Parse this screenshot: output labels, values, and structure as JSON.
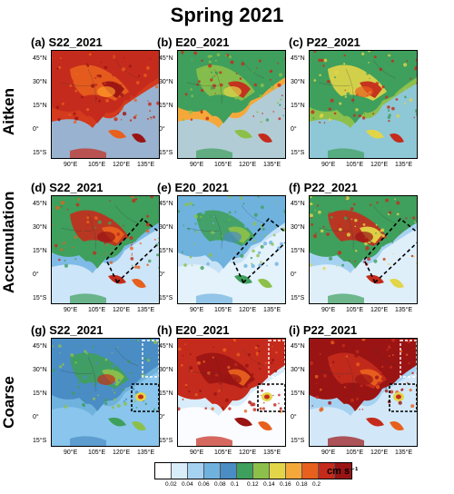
{
  "title": "Spring 2021",
  "rows": [
    {
      "label": "Aitken",
      "panels": [
        {
          "letter": "(a)",
          "name": "S22_2021",
          "theme": "hot"
        },
        {
          "letter": "(b)",
          "name": "E20_2021",
          "theme": "mixed"
        },
        {
          "letter": "(c)",
          "name": "P22_2021",
          "theme": "mixed2"
        }
      ]
    },
    {
      "label": "Accumulation",
      "panels": [
        {
          "letter": "(d)",
          "name": "S22_2021",
          "theme": "accum"
        },
        {
          "letter": "(e)",
          "name": "E20_2021",
          "theme": "cool"
        },
        {
          "letter": "(f)",
          "name": "P22_2021",
          "theme": "accum2"
        }
      ]
    },
    {
      "label": "Coarse",
      "panels": [
        {
          "letter": "(g)",
          "name": "S22_2021",
          "theme": "coarse1"
        },
        {
          "letter": "(h)",
          "name": "E20_2021",
          "theme": "coarse2"
        },
        {
          "letter": "(i)",
          "name": "P22_2021",
          "theme": "coarse3"
        }
      ]
    }
  ],
  "lat_ticks": [
    "45°N",
    "30°N",
    "15°N",
    "0°",
    "15°S"
  ],
  "lon_ticks": [
    "90°E",
    "105°E",
    "120°E",
    "135°E"
  ],
  "colorbar": {
    "colors": [
      "#ffffff",
      "#d9ecfa",
      "#a6d2f2",
      "#6fb2de",
      "#4a8cc4",
      "#3f9f5c",
      "#8cc04a",
      "#e2d548",
      "#f5a83a",
      "#e8601e",
      "#c52b1c",
      "#9a1414"
    ],
    "labels": [
      "0.02",
      "0.04",
      "0.06",
      "0.08",
      "0.1",
      "0.12",
      "0.14",
      "0.16",
      "0.18",
      "0.2"
    ],
    "unit": "cm s⁻¹"
  }
}
